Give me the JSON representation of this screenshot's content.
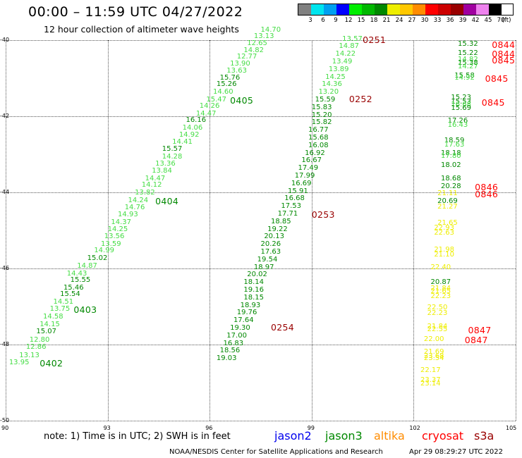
{
  "header": {
    "title": "00:00 – 11:59 UTC 04/27/2022",
    "subtitle": "12 hour collection of altimeter wave heights"
  },
  "legend": {
    "unit_label": "(ft)",
    "bins": [
      {
        "label": "3",
        "color": "#808080"
      },
      {
        "label": "6",
        "color": "#00e5ee"
      },
      {
        "label": "9",
        "color": "#00a0f0"
      },
      {
        "label": "12",
        "color": "#0000ff"
      },
      {
        "label": "15",
        "color": "#00ee00"
      },
      {
        "label": "18",
        "color": "#00b800"
      },
      {
        "label": "21",
        "color": "#008800"
      },
      {
        "label": "24",
        "color": "#eeee00"
      },
      {
        "label": "27",
        "color": "#ffc800"
      },
      {
        "label": "30",
        "color": "#ff8c00"
      },
      {
        "label": "33",
        "color": "#ff0000"
      },
      {
        "label": "36",
        "color": "#cc0000"
      },
      {
        "label": "39",
        "color": "#990000"
      },
      {
        "label": "42",
        "color": "#a000a0"
      },
      {
        "label": "45",
        "color": "#ee82ee"
      },
      {
        "label": "70",
        "color": "#000000"
      }
    ]
  },
  "axes": {
    "x_range": [
      90,
      105
    ],
    "y_range": [
      -40,
      -50
    ],
    "x_ticks": [
      "90",
      "93",
      "96",
      "99",
      "102",
      "105"
    ],
    "y_ticks": [
      "-40",
      "-42",
      "-44",
      "-46",
      "-48",
      "-50"
    ]
  },
  "wave_colors": {
    "light_green": "#44dd44",
    "dark_green": "#008800",
    "yellow": "#eeee00",
    "pass_label": "#990000",
    "pass_label_red": "#ff0000"
  },
  "measurements": [
    {
      "t": "13.95",
      "lon": 90.1,
      "lat": -48.38,
      "c": "light_green"
    },
    {
      "t": "13.13",
      "lon": 90.4,
      "lat": -48.2,
      "c": "light_green"
    },
    {
      "t": "12.86",
      "lon": 90.6,
      "lat": -47.98,
      "c": "light_green"
    },
    {
      "t": "12.80",
      "lon": 90.7,
      "lat": -47.8,
      "c": "light_green"
    },
    {
      "t": "15.07",
      "lon": 90.9,
      "lat": -47.57,
      "c": "dark_green"
    },
    {
      "t": "14.15",
      "lon": 91.0,
      "lat": -47.38,
      "c": "light_green"
    },
    {
      "t": "14.58",
      "lon": 91.1,
      "lat": -47.18,
      "c": "light_green"
    },
    {
      "t": "13.75",
      "lon": 91.3,
      "lat": -46.98,
      "c": "light_green"
    },
    {
      "t": "14.51",
      "lon": 91.4,
      "lat": -46.8,
      "c": "light_green"
    },
    {
      "t": "15.54",
      "lon": 91.6,
      "lat": -46.6,
      "c": "dark_green"
    },
    {
      "t": "15.46",
      "lon": 91.7,
      "lat": -46.43,
      "c": "dark_green"
    },
    {
      "t": "15.55",
      "lon": 91.9,
      "lat": -46.23,
      "c": "dark_green"
    },
    {
      "t": "14.43",
      "lon": 91.8,
      "lat": -46.05,
      "c": "light_green"
    },
    {
      "t": "14.87",
      "lon": 92.1,
      "lat": -45.85,
      "c": "light_green"
    },
    {
      "t": "15.02",
      "lon": 92.4,
      "lat": -45.65,
      "c": "dark_green"
    },
    {
      "t": "14.99",
      "lon": 92.6,
      "lat": -45.45,
      "c": "light_green"
    },
    {
      "t": "13.59",
      "lon": 92.8,
      "lat": -45.28,
      "c": "light_green"
    },
    {
      "t": "13.56",
      "lon": 92.9,
      "lat": -45.08,
      "c": "light_green"
    },
    {
      "t": "14.25",
      "lon": 93.0,
      "lat": -44.88,
      "c": "light_green"
    },
    {
      "t": "14.37",
      "lon": 93.1,
      "lat": -44.7,
      "c": "light_green"
    },
    {
      "t": "14.93",
      "lon": 93.3,
      "lat": -44.5,
      "c": "light_green"
    },
    {
      "t": "14.76",
      "lon": 93.5,
      "lat": -44.32,
      "c": "light_green"
    },
    {
      "t": "14.24",
      "lon": 93.6,
      "lat": -44.13,
      "c": "light_green"
    },
    {
      "t": "13.82",
      "lon": 93.8,
      "lat": -43.93,
      "c": "light_green"
    },
    {
      "t": "14.12",
      "lon": 94.0,
      "lat": -43.73,
      "c": "light_green"
    },
    {
      "t": "14.47",
      "lon": 94.1,
      "lat": -43.55,
      "c": "light_green"
    },
    {
      "t": "13.84",
      "lon": 94.3,
      "lat": -43.35,
      "c": "light_green"
    },
    {
      "t": "13.36",
      "lon": 94.4,
      "lat": -43.17,
      "c": "light_green"
    },
    {
      "t": "14.28",
      "lon": 94.6,
      "lat": -42.98,
      "c": "light_green"
    },
    {
      "t": "15.57",
      "lon": 94.6,
      "lat": -42.78,
      "c": "dark_green"
    },
    {
      "t": "14.41",
      "lon": 94.9,
      "lat": -42.6,
      "c": "light_green"
    },
    {
      "t": "14.92",
      "lon": 95.1,
      "lat": -42.4,
      "c": "light_green"
    },
    {
      "t": "14.06",
      "lon": 95.2,
      "lat": -42.22,
      "c": "light_green"
    },
    {
      "t": "16.16",
      "lon": 95.3,
      "lat": -42.02,
      "c": "dark_green"
    },
    {
      "t": "14.47",
      "lon": 95.6,
      "lat": -41.85,
      "c": "light_green"
    },
    {
      "t": "14.26",
      "lon": 95.7,
      "lat": -41.65,
      "c": "light_green"
    },
    {
      "t": "15.47",
      "lon": 95.9,
      "lat": -41.48,
      "c": "light_green"
    },
    {
      "t": "14.60",
      "lon": 96.1,
      "lat": -41.28,
      "c": "light_green"
    },
    {
      "t": "15.26",
      "lon": 96.2,
      "lat": -41.08,
      "c": "dark_green"
    },
    {
      "t": "15.76",
      "lon": 96.3,
      "lat": -40.9,
      "c": "dark_green"
    },
    {
      "t": "13.63",
      "lon": 96.5,
      "lat": -40.72,
      "c": "light_green"
    },
    {
      "t": "13.90",
      "lon": 96.6,
      "lat": -40.53,
      "c": "light_green"
    },
    {
      "t": "12.77",
      "lon": 96.8,
      "lat": -40.35,
      "c": "light_green"
    },
    {
      "t": "14.82",
      "lon": 97.0,
      "lat": -40.18,
      "c": "light_green"
    },
    {
      "t": "12.65",
      "lon": 97.1,
      "lat": -40.0,
      "c": "light_green"
    },
    {
      "t": "13.13",
      "lon": 97.3,
      "lat": -39.82,
      "c": "light_green"
    },
    {
      "t": "14.70",
      "lon": 97.5,
      "lat": -39.65,
      "c": "light_green"
    },
    {
      "t": "13.57",
      "lon": 99.9,
      "lat": -39.88,
      "c": "light_green"
    },
    {
      "t": "14.87",
      "lon": 99.8,
      "lat": -40.08,
      "c": "light_green"
    },
    {
      "t": "14.22",
      "lon": 99.7,
      "lat": -40.28,
      "c": "light_green"
    },
    {
      "t": "13.49",
      "lon": 99.6,
      "lat": -40.48,
      "c": "light_green"
    },
    {
      "t": "13.89",
      "lon": 99.5,
      "lat": -40.68,
      "c": "light_green"
    },
    {
      "t": "14.25",
      "lon": 99.4,
      "lat": -40.88,
      "c": "light_green"
    },
    {
      "t": "14.36",
      "lon": 99.3,
      "lat": -41.08,
      "c": "light_green"
    },
    {
      "t": "13.20",
      "lon": 99.2,
      "lat": -41.28,
      "c": "light_green"
    },
    {
      "t": "15.59",
      "lon": 99.1,
      "lat": -41.48,
      "c": "dark_green"
    },
    {
      "t": "15.83",
      "lon": 99.0,
      "lat": -41.68,
      "c": "dark_green"
    },
    {
      "t": "15.20",
      "lon": 99.0,
      "lat": -41.88,
      "c": "dark_green"
    },
    {
      "t": "15.82",
      "lon": 99.0,
      "lat": -42.08,
      "c": "dark_green"
    },
    {
      "t": "16.77",
      "lon": 98.9,
      "lat": -42.28,
      "c": "dark_green"
    },
    {
      "t": "15.68",
      "lon": 98.9,
      "lat": -42.48,
      "c": "dark_green"
    },
    {
      "t": "16.08",
      "lon": 98.9,
      "lat": -42.68,
      "c": "dark_green"
    },
    {
      "t": "16.92",
      "lon": 98.8,
      "lat": -42.88,
      "c": "dark_green"
    },
    {
      "t": "16.67",
      "lon": 98.7,
      "lat": -43.08,
      "c": "dark_green"
    },
    {
      "t": "17.49",
      "lon": 98.6,
      "lat": -43.28,
      "c": "dark_green"
    },
    {
      "t": "17.99",
      "lon": 98.5,
      "lat": -43.48,
      "c": "dark_green"
    },
    {
      "t": "16.69",
      "lon": 98.4,
      "lat": -43.68,
      "c": "dark_green"
    },
    {
      "t": "15.91",
      "lon": 98.3,
      "lat": -43.88,
      "c": "dark_green"
    },
    {
      "t": "16.68",
      "lon": 98.2,
      "lat": -44.08,
      "c": "dark_green"
    },
    {
      "t": "17.53",
      "lon": 98.1,
      "lat": -44.28,
      "c": "dark_green"
    },
    {
      "t": "17.71",
      "lon": 98.0,
      "lat": -44.48,
      "c": "dark_green"
    },
    {
      "t": "18.85",
      "lon": 97.8,
      "lat": -44.68,
      "c": "dark_green"
    },
    {
      "t": "19.22",
      "lon": 97.7,
      "lat": -44.88,
      "c": "dark_green"
    },
    {
      "t": "20.13",
      "lon": 97.6,
      "lat": -45.08,
      "c": "dark_green"
    },
    {
      "t": "20.26",
      "lon": 97.5,
      "lat": -45.28,
      "c": "dark_green"
    },
    {
      "t": "17.63",
      "lon": 97.5,
      "lat": -45.48,
      "c": "dark_green"
    },
    {
      "t": "19.54",
      "lon": 97.4,
      "lat": -45.68,
      "c": "dark_green"
    },
    {
      "t": "18.97",
      "lon": 97.3,
      "lat": -45.88,
      "c": "dark_green"
    },
    {
      "t": "20.02",
      "lon": 97.1,
      "lat": -46.08,
      "c": "dark_green"
    },
    {
      "t": "18.14",
      "lon": 97.0,
      "lat": -46.28,
      "c": "dark_green"
    },
    {
      "t": "19.16",
      "lon": 97.0,
      "lat": -46.48,
      "c": "dark_green"
    },
    {
      "t": "18.15",
      "lon": 97.0,
      "lat": -46.68,
      "c": "dark_green"
    },
    {
      "t": "18.93",
      "lon": 96.9,
      "lat": -46.88,
      "c": "dark_green"
    },
    {
      "t": "19.76",
      "lon": 96.8,
      "lat": -47.08,
      "c": "dark_green"
    },
    {
      "t": "17.64",
      "lon": 96.7,
      "lat": -47.28,
      "c": "dark_green"
    },
    {
      "t": "19.30",
      "lon": 96.6,
      "lat": -47.48,
      "c": "dark_green"
    },
    {
      "t": "17.00",
      "lon": 96.5,
      "lat": -47.68,
      "c": "dark_green"
    },
    {
      "t": "16.83",
      "lon": 96.4,
      "lat": -47.88,
      "c": "dark_green"
    },
    {
      "t": "18.56",
      "lon": 96.3,
      "lat": -48.08,
      "c": "dark_green"
    },
    {
      "t": "19.03",
      "lon": 96.2,
      "lat": -48.28,
      "c": "dark_green"
    },
    {
      "t": "15.32",
      "lon": 103.3,
      "lat": -40.02,
      "c": "dark_green"
    },
    {
      "t": "15.22",
      "lon": 103.3,
      "lat": -40.25,
      "c": "dark_green"
    },
    {
      "t": "14.82",
      "lon": 103.3,
      "lat": -40.42,
      "c": "light_green"
    },
    {
      "t": "15.38",
      "lon": 103.3,
      "lat": -40.52,
      "c": "dark_green"
    },
    {
      "t": "14.27",
      "lon": 103.3,
      "lat": -40.62,
      "c": "light_green"
    },
    {
      "t": "15.58",
      "lon": 103.2,
      "lat": -40.85,
      "c": "dark_green"
    },
    {
      "t": "14.92",
      "lon": 103.2,
      "lat": -40.9,
      "c": "light_green"
    },
    {
      "t": "15.23",
      "lon": 103.1,
      "lat": -41.43,
      "c": "dark_green"
    },
    {
      "t": "15.53",
      "lon": 103.1,
      "lat": -41.53,
      "c": "dark_green"
    },
    {
      "t": "16.68",
      "lon": 103.1,
      "lat": -41.62,
      "c": "light_green"
    },
    {
      "t": "15.69",
      "lon": 103.1,
      "lat": -41.7,
      "c": "dark_green"
    },
    {
      "t": "17.26",
      "lon": 103.0,
      "lat": -42.03,
      "c": "dark_green"
    },
    {
      "t": "16.43",
      "lon": 103.0,
      "lat": -42.15,
      "c": "light_green"
    },
    {
      "t": "18.59",
      "lon": 102.9,
      "lat": -42.55,
      "c": "dark_green"
    },
    {
      "t": "17.63",
      "lon": 102.9,
      "lat": -42.66,
      "c": "light_green"
    },
    {
      "t": "18.18",
      "lon": 102.8,
      "lat": -42.88,
      "c": "dark_green"
    },
    {
      "t": "17.80",
      "lon": 102.8,
      "lat": -42.96,
      "c": "light_green"
    },
    {
      "t": "18.02",
      "lon": 102.8,
      "lat": -43.2,
      "c": "dark_green"
    },
    {
      "t": "18.68",
      "lon": 102.8,
      "lat": -43.55,
      "c": "dark_green"
    },
    {
      "t": "20.28",
      "lon": 102.8,
      "lat": -43.75,
      "c": "dark_green"
    },
    {
      "t": "21.11",
      "lon": 102.7,
      "lat": -43.95,
      "c": "yellow"
    },
    {
      "t": "20.69",
      "lon": 102.7,
      "lat": -44.15,
      "c": "dark_green"
    },
    {
      "t": "21.27",
      "lon": 102.7,
      "lat": -44.3,
      "c": "yellow"
    },
    {
      "t": "21.65",
      "lon": 102.7,
      "lat": -44.73,
      "c": "yellow"
    },
    {
      "t": "22.93",
      "lon": 102.6,
      "lat": -44.85,
      "c": "yellow"
    },
    {
      "t": "22.63",
      "lon": 102.6,
      "lat": -44.98,
      "c": "yellow"
    },
    {
      "t": "21.98",
      "lon": 102.6,
      "lat": -45.43,
      "c": "yellow"
    },
    {
      "t": "21.10",
      "lon": 102.6,
      "lat": -45.55,
      "c": "yellow"
    },
    {
      "t": "22.40",
      "lon": 102.5,
      "lat": -45.88,
      "c": "yellow"
    },
    {
      "t": "20.87",
      "lon": 102.5,
      "lat": -46.28,
      "c": "dark_green"
    },
    {
      "t": "21.84",
      "lon": 102.5,
      "lat": -46.45,
      "c": "yellow"
    },
    {
      "t": "21.65",
      "lon": 102.5,
      "lat": -46.52,
      "c": "yellow"
    },
    {
      "t": "22.23",
      "lon": 102.5,
      "lat": -46.65,
      "c": "yellow"
    },
    {
      "t": "22.50",
      "lon": 102.4,
      "lat": -46.95,
      "c": "yellow"
    },
    {
      "t": "22.23",
      "lon": 102.4,
      "lat": -47.1,
      "c": "yellow"
    },
    {
      "t": "21.84",
      "lon": 102.4,
      "lat": -47.45,
      "c": "yellow"
    },
    {
      "t": "22.55",
      "lon": 102.4,
      "lat": -47.52,
      "c": "yellow"
    },
    {
      "t": "22.00",
      "lon": 102.3,
      "lat": -47.78,
      "c": "yellow"
    },
    {
      "t": "21.69",
      "lon": 102.3,
      "lat": -48.12,
      "c": "yellow"
    },
    {
      "t": "23.68",
      "lon": 102.3,
      "lat": -48.22,
      "c": "yellow"
    },
    {
      "t": "23.54",
      "lon": 102.3,
      "lat": -48.28,
      "c": "yellow"
    },
    {
      "t": "22.17",
      "lon": 102.2,
      "lat": -48.6,
      "c": "yellow"
    },
    {
      "t": "23.37",
      "lon": 102.2,
      "lat": -48.85,
      "c": "yellow"
    },
    {
      "t": "23.14",
      "lon": 102.2,
      "lat": -48.95,
      "c": "yellow"
    }
  ],
  "pass_labels": [
    {
      "t": "0251",
      "lon": 100.5,
      "lat": -39.88,
      "c": "pass_label"
    },
    {
      "t": "0252",
      "lon": 100.1,
      "lat": -41.45,
      "c": "pass_label"
    },
    {
      "t": "0253",
      "lon": 99.0,
      "lat": -44.48,
      "c": "pass_label"
    },
    {
      "t": "0254",
      "lon": 97.8,
      "lat": -47.45,
      "c": "pass_label"
    },
    {
      "t": "0405",
      "lon": 96.6,
      "lat": -41.48,
      "c": "dark_green"
    },
    {
      "t": "0404",
      "lon": 94.4,
      "lat": -44.13,
      "c": "dark_green"
    },
    {
      "t": "0403",
      "lon": 92.0,
      "lat": -46.98,
      "c": "dark_green"
    },
    {
      "t": "0402",
      "lon": 91.0,
      "lat": -48.38,
      "c": "dark_green"
    },
    {
      "t": "0844",
      "lon": 104.3,
      "lat": -40.02,
      "c": "pass_label_red"
    },
    {
      "t": "0844",
      "lon": 104.3,
      "lat": -40.25,
      "c": "pass_label_red"
    },
    {
      "t": "0845",
      "lon": 104.3,
      "lat": -40.42,
      "c": "pass_label_red"
    },
    {
      "t": "0845",
      "lon": 104.1,
      "lat": -40.9,
      "c": "pass_label_red"
    },
    {
      "t": "0845",
      "lon": 104.0,
      "lat": -41.53,
      "c": "pass_label_red"
    },
    {
      "t": "0846",
      "lon": 103.8,
      "lat": -43.75,
      "c": "pass_label_red"
    },
    {
      "t": "0846",
      "lon": 103.8,
      "lat": -43.95,
      "c": "pass_label_red"
    },
    {
      "t": "0847",
      "lon": 103.6,
      "lat": -47.52,
      "c": "pass_label_red"
    },
    {
      "t": "0847",
      "lon": 103.5,
      "lat": -47.78,
      "c": "pass_label_red"
    }
  ],
  "footer": {
    "note": "note:  1) Time is in UTC; 2) SWH is in feet",
    "satellites": [
      {
        "name": "jason2",
        "color": "#0000ee"
      },
      {
        "name": "jason3",
        "color": "#008800"
      },
      {
        "name": "altika",
        "color": "#ff8c00"
      },
      {
        "name": "cryosat",
        "color": "#ff0000"
      },
      {
        "name": "s3a",
        "color": "#990000"
      }
    ],
    "credit": "NOAA/NESDIS Center for Satellite Applications and Research",
    "generated": "Apr 29 08:29:27 UTC 2022"
  }
}
